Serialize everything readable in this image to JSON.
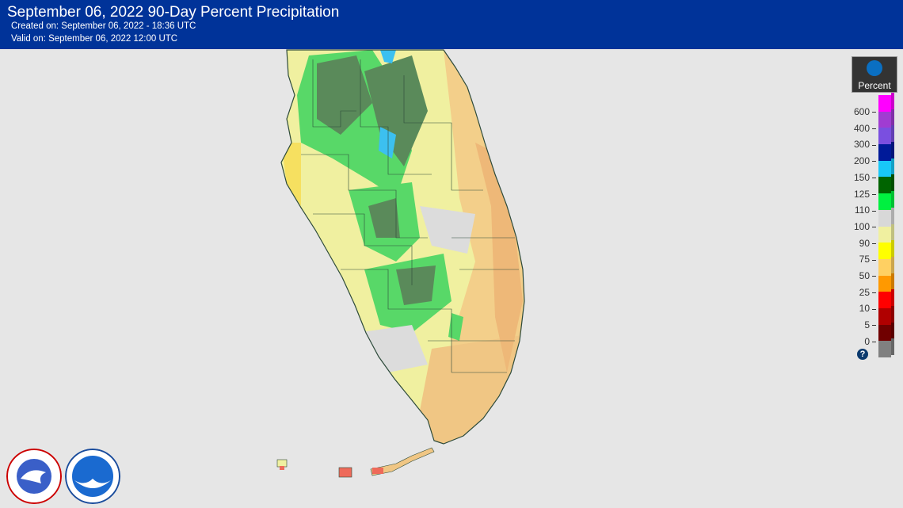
{
  "header": {
    "title": "September 06, 2022 90-Day Percent Precipitation",
    "created": "Created on: September 06, 2022 - 18:36 UTC",
    "valid": "Valid on: September 06, 2022 12:00 UTC"
  },
  "legend": {
    "title": "Percent",
    "help": "?",
    "colors": [
      "#ff00ff",
      "#a03cd2",
      "#7a4fe0",
      "#001a99",
      "#18c8f8",
      "#006400",
      "#00f040",
      "#d8d8d8",
      "#f0f0a0",
      "#ffff00",
      "#ffd062",
      "#ff9900",
      "#ff0000",
      "#b00000",
      "#700000",
      "#808080"
    ],
    "ticks": [
      "600",
      "400",
      "300",
      "200",
      "150",
      "125",
      "110",
      "100",
      "90",
      "75",
      "50",
      "25",
      "10",
      "5",
      "0"
    ]
  },
  "logos": {
    "nws": "NATIONAL WEATHER SERVICE",
    "noaa": "NOAA"
  }
}
